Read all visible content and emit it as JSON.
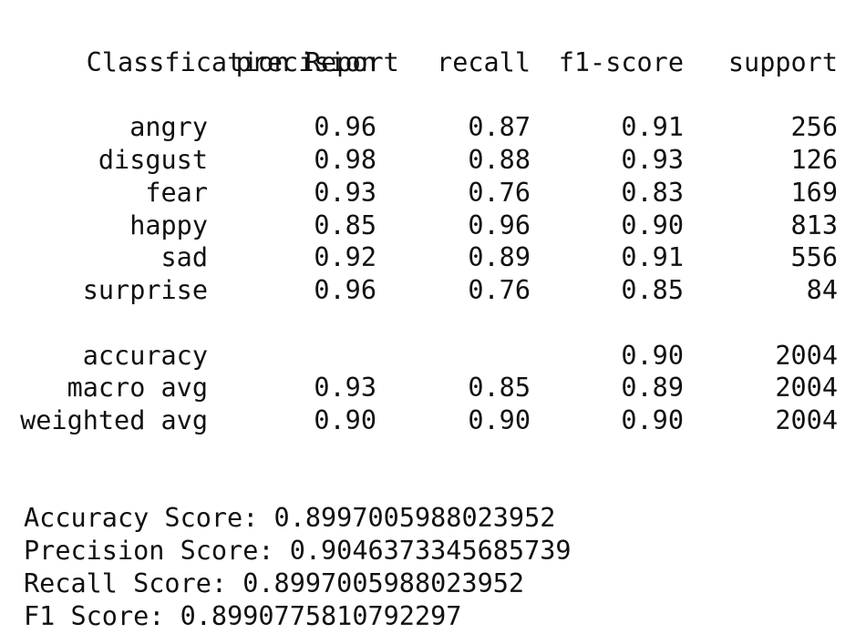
{
  "report": {
    "title": "Classfication Report",
    "headers": {
      "precision": "precision",
      "recall": "recall",
      "f1": "f1-score",
      "support": "support"
    },
    "rows": [
      {
        "label": "angry",
        "precision": "0.96",
        "recall": "0.87",
        "f1": "0.91",
        "support": "256"
      },
      {
        "label": "disgust",
        "precision": "0.98",
        "recall": "0.88",
        "f1": "0.93",
        "support": "126"
      },
      {
        "label": "fear",
        "precision": "0.93",
        "recall": "0.76",
        "f1": "0.83",
        "support": "169"
      },
      {
        "label": "happy",
        "precision": "0.85",
        "recall": "0.96",
        "f1": "0.90",
        "support": "813"
      },
      {
        "label": "sad",
        "precision": "0.92",
        "recall": "0.89",
        "f1": "0.91",
        "support": "556"
      },
      {
        "label": "surprise",
        "precision": "0.96",
        "recall": "0.76",
        "f1": "0.85",
        "support": "84"
      }
    ],
    "summary": [
      {
        "label": "accuracy",
        "precision": "",
        "recall": "",
        "f1": "0.90",
        "support": "2004"
      },
      {
        "label": "macro avg",
        "precision": "0.93",
        "recall": "0.85",
        "f1": "0.89",
        "support": "2004"
      },
      {
        "label": "weighted avg",
        "precision": "0.90",
        "recall": "0.90",
        "f1": "0.90",
        "support": "2004"
      }
    ]
  },
  "scores": [
    {
      "label": "Accuracy Score: ",
      "value": "0.8997005988023952"
    },
    {
      "label": "Precision Score: ",
      "value": "0.9046373345685739"
    },
    {
      "label": "Recall Score: ",
      "value": "0.8997005988023952"
    },
    {
      "label": "F1 Score: ",
      "value": "0.8990775810792297"
    }
  ]
}
